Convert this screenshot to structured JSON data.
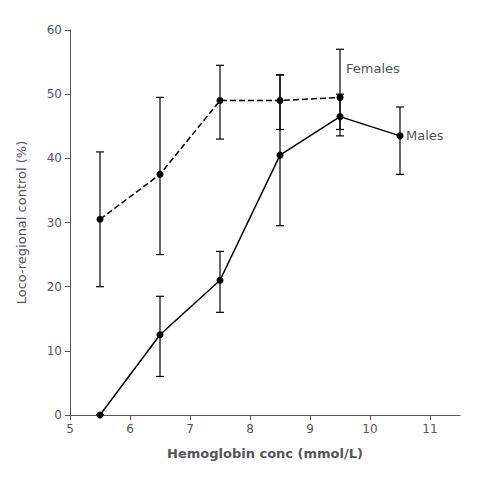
{
  "chart_data": {
    "type": "line",
    "xlabel": "Hemoglobin conc (mmol/L)",
    "ylabel": "Loco-regional control (%)",
    "xlim": [
      5.0,
      11.5
    ],
    "ylim": [
      0,
      60
    ],
    "xticks": [
      5,
      6,
      7,
      8,
      9,
      10,
      11
    ],
    "yticks": [
      0,
      10,
      20,
      30,
      40,
      50,
      60
    ],
    "grid": false,
    "color": "black",
    "marker": "circle",
    "series": [
      {
        "x": [
          5.5,
          6.5,
          7.5,
          8.5,
          9.5
        ],
        "values": [
          30.5,
          37.5,
          49.0,
          49.0,
          49.5
        ],
        "error_upper": [
          10.5,
          12.0,
          5.5,
          4.0,
          7.5
        ],
        "error_lower": [
          10.5,
          12.5,
          6.0,
          4.5,
          5.0
        ],
        "line_style": "dashed"
      },
      {
        "x": [
          5.5,
          6.5,
          7.5,
          8.5,
          9.5,
          10.5
        ],
        "values": [
          0.0,
          12.5,
          21.0,
          40.5,
          46.5,
          43.5
        ],
        "error_upper": [
          0.0,
          6.0,
          4.5,
          12.5,
          3.5,
          4.5
        ],
        "error_lower": [
          0.0,
          6.5,
          5.0,
          11.0,
          3.0,
          6.0
        ],
        "line_style": "solid"
      }
    ],
    "annotations": [
      {
        "text": "Females",
        "x": 9.6,
        "y": 53.0
      },
      {
        "text": "Males",
        "x": 10.6,
        "y": 43.5
      }
    ]
  }
}
